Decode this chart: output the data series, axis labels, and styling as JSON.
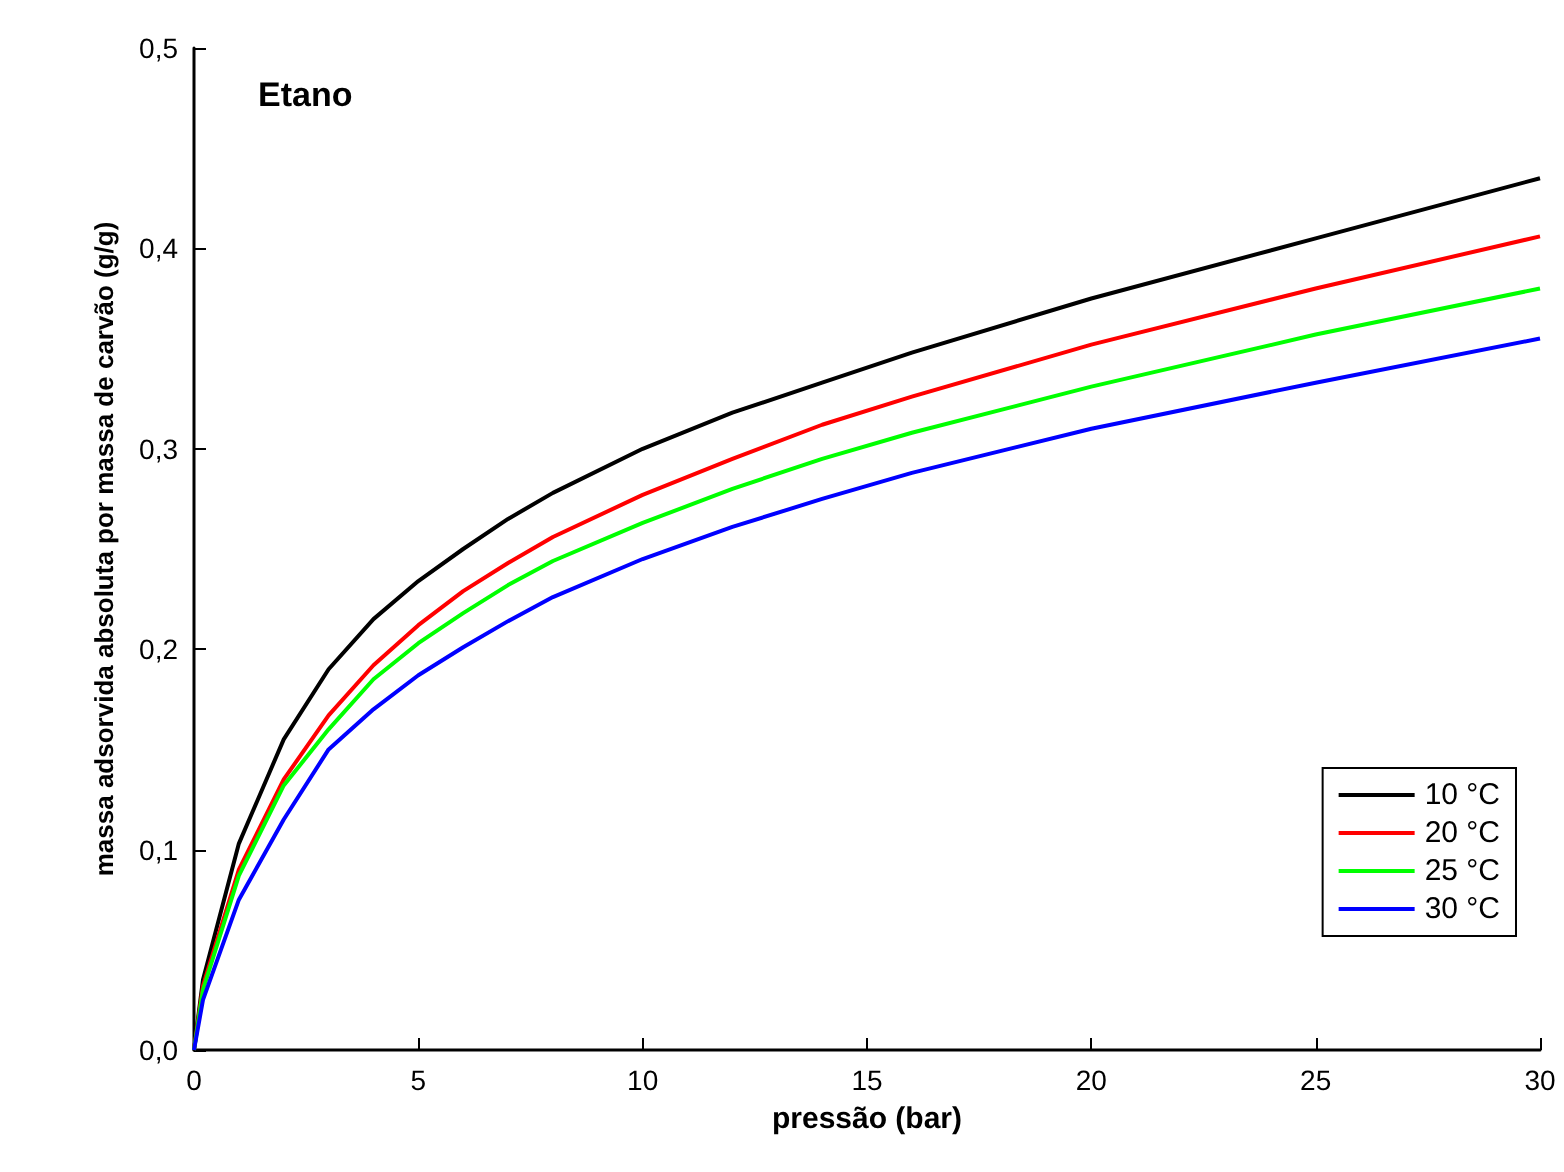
{
  "chart_data": {
    "type": "line",
    "title": "Etano",
    "xlabel": "pressão (bar)",
    "ylabel": "massa adsorvida absoluta por massa de carvão (g/g)",
    "xlim": [
      0,
      30
    ],
    "xticks": [
      0,
      5,
      10,
      15,
      20,
      25,
      30
    ],
    "ylim": [
      0,
      0.5
    ],
    "yticks": [
      {
        "value": 0,
        "label": "0,0"
      },
      {
        "value": 0.1,
        "label": "0,1"
      },
      {
        "value": 0.2,
        "label": "0,2"
      },
      {
        "value": 0.3,
        "label": "0,3"
      },
      {
        "value": 0.4,
        "label": "0,4"
      },
      {
        "value": 0.5,
        "label": "0,5"
      }
    ],
    "x": [
      0,
      0.2,
      1,
      2,
      3,
      4,
      5,
      6,
      7,
      8,
      10,
      12,
      14,
      16,
      20,
      25,
      30
    ],
    "series": [
      {
        "name": "10 °C",
        "color": "#000000",
        "values": [
          0,
          0.035,
          0.103,
          0.155,
          0.19,
          0.215,
          0.234,
          0.25,
          0.265,
          0.278,
          0.3,
          0.318,
          0.333,
          0.348,
          0.375,
          0.405,
          0.435
        ]
      },
      {
        "name": "20 °C",
        "color": "#ff0000",
        "values": [
          0,
          0.032,
          0.09,
          0.135,
          0.167,
          0.192,
          0.212,
          0.229,
          0.243,
          0.256,
          0.277,
          0.295,
          0.312,
          0.326,
          0.352,
          0.38,
          0.406
        ]
      },
      {
        "name": "25 °C",
        "color": "#00ff00",
        "values": [
          0,
          0.03,
          0.087,
          0.132,
          0.16,
          0.185,
          0.203,
          0.218,
          0.232,
          0.244,
          0.263,
          0.28,
          0.295,
          0.308,
          0.331,
          0.357,
          0.38
        ]
      },
      {
        "name": "30 °C",
        "color": "#0000ff",
        "values": [
          0,
          0.025,
          0.075,
          0.115,
          0.15,
          0.17,
          0.187,
          0.201,
          0.214,
          0.226,
          0.245,
          0.261,
          0.275,
          0.288,
          0.31,
          0.333,
          0.355
        ]
      }
    ],
    "legend": "bottom right",
    "grid": false,
    "marker": "none",
    "line_style": "solid"
  }
}
